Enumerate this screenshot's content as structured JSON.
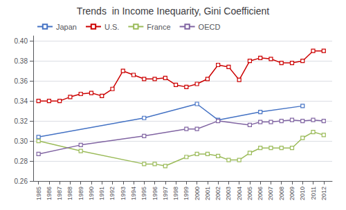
{
  "chart_data": {
    "type": "line",
    "title": "Trends  in Income Inequarity, Gini Coefficient",
    "xlim": [
      1984.5,
      2012.8
    ],
    "xticks": [
      1985,
      1986,
      1987,
      1988,
      1989,
      1990,
      1991,
      1992,
      1993,
      1994,
      1995,
      1996,
      1997,
      1998,
      1999,
      2000,
      2001,
      2002,
      2003,
      2004,
      2005,
      2006,
      2007,
      2008,
      2009,
      2010,
      2011,
      2012
    ],
    "ylim": [
      0.26,
      0.405
    ],
    "yticks": [
      0.26,
      0.28,
      {
        "value": 0.3,
        "label": "0.30"
      },
      0.32,
      0.34,
      0.36,
      0.38,
      {
        "value": 0.4,
        "label": "0.40"
      }
    ],
    "grid": true,
    "legend": "upper left",
    "marker": "square",
    "line_style": "solid",
    "series": [
      {
        "name": "Japan",
        "color": "#4472C4",
        "x": [
          1985,
          1995,
          2000,
          2002,
          2006,
          2010
        ],
        "values": [
          0.304,
          0.323,
          0.337,
          0.321,
          0.329,
          0.335
        ]
      },
      {
        "name": "U.S.",
        "color": "#CC0000",
        "x": [
          1985,
          1986,
          1987,
          1988,
          1989,
          1990,
          1991,
          1992,
          1993,
          1994,
          1995,
          1996,
          1997,
          1998,
          1999,
          2000,
          2001,
          2002,
          2003,
          2004,
          2005,
          2006,
          2007,
          2008,
          2009,
          2010,
          2011,
          2012
        ],
        "values": [
          0.34,
          0.34,
          0.34,
          0.344,
          0.347,
          0.348,
          0.345,
          0.352,
          0.37,
          0.366,
          0.362,
          0.362,
          0.363,
          0.356,
          0.354,
          0.357,
          0.362,
          0.376,
          0.374,
          0.361,
          0.38,
          0.383,
          0.382,
          0.378,
          0.378,
          0.38,
          0.39,
          0.39
        ]
      },
      {
        "name": "France",
        "color": "#9BBB59",
        "x": [
          1985,
          1989,
          1995,
          1996,
          1997,
          1999,
          2000,
          2001,
          2002,
          2003,
          2004,
          2005,
          2006,
          2007,
          2008,
          2009,
          2010,
          2011,
          2012
        ],
        "values": [
          0.3,
          0.29,
          0.277,
          0.277,
          0.275,
          0.284,
          0.287,
          0.287,
          0.285,
          0.281,
          0.281,
          0.288,
          0.293,
          0.293,
          0.293,
          0.293,
          0.303,
          0.309,
          0.306
        ]
      },
      {
        "name": "OECD",
        "color": "#8064A2",
        "x": [
          1985,
          1989,
          1995,
          1999,
          2000,
          2002,
          2005,
          2006,
          2007,
          2008,
          2009,
          2010,
          2011,
          2012
        ],
        "values": [
          0.287,
          0.296,
          0.305,
          0.312,
          0.312,
          0.32,
          0.316,
          0.319,
          0.319,
          0.32,
          0.321,
          0.32,
          0.321,
          0.32
        ]
      }
    ]
  }
}
